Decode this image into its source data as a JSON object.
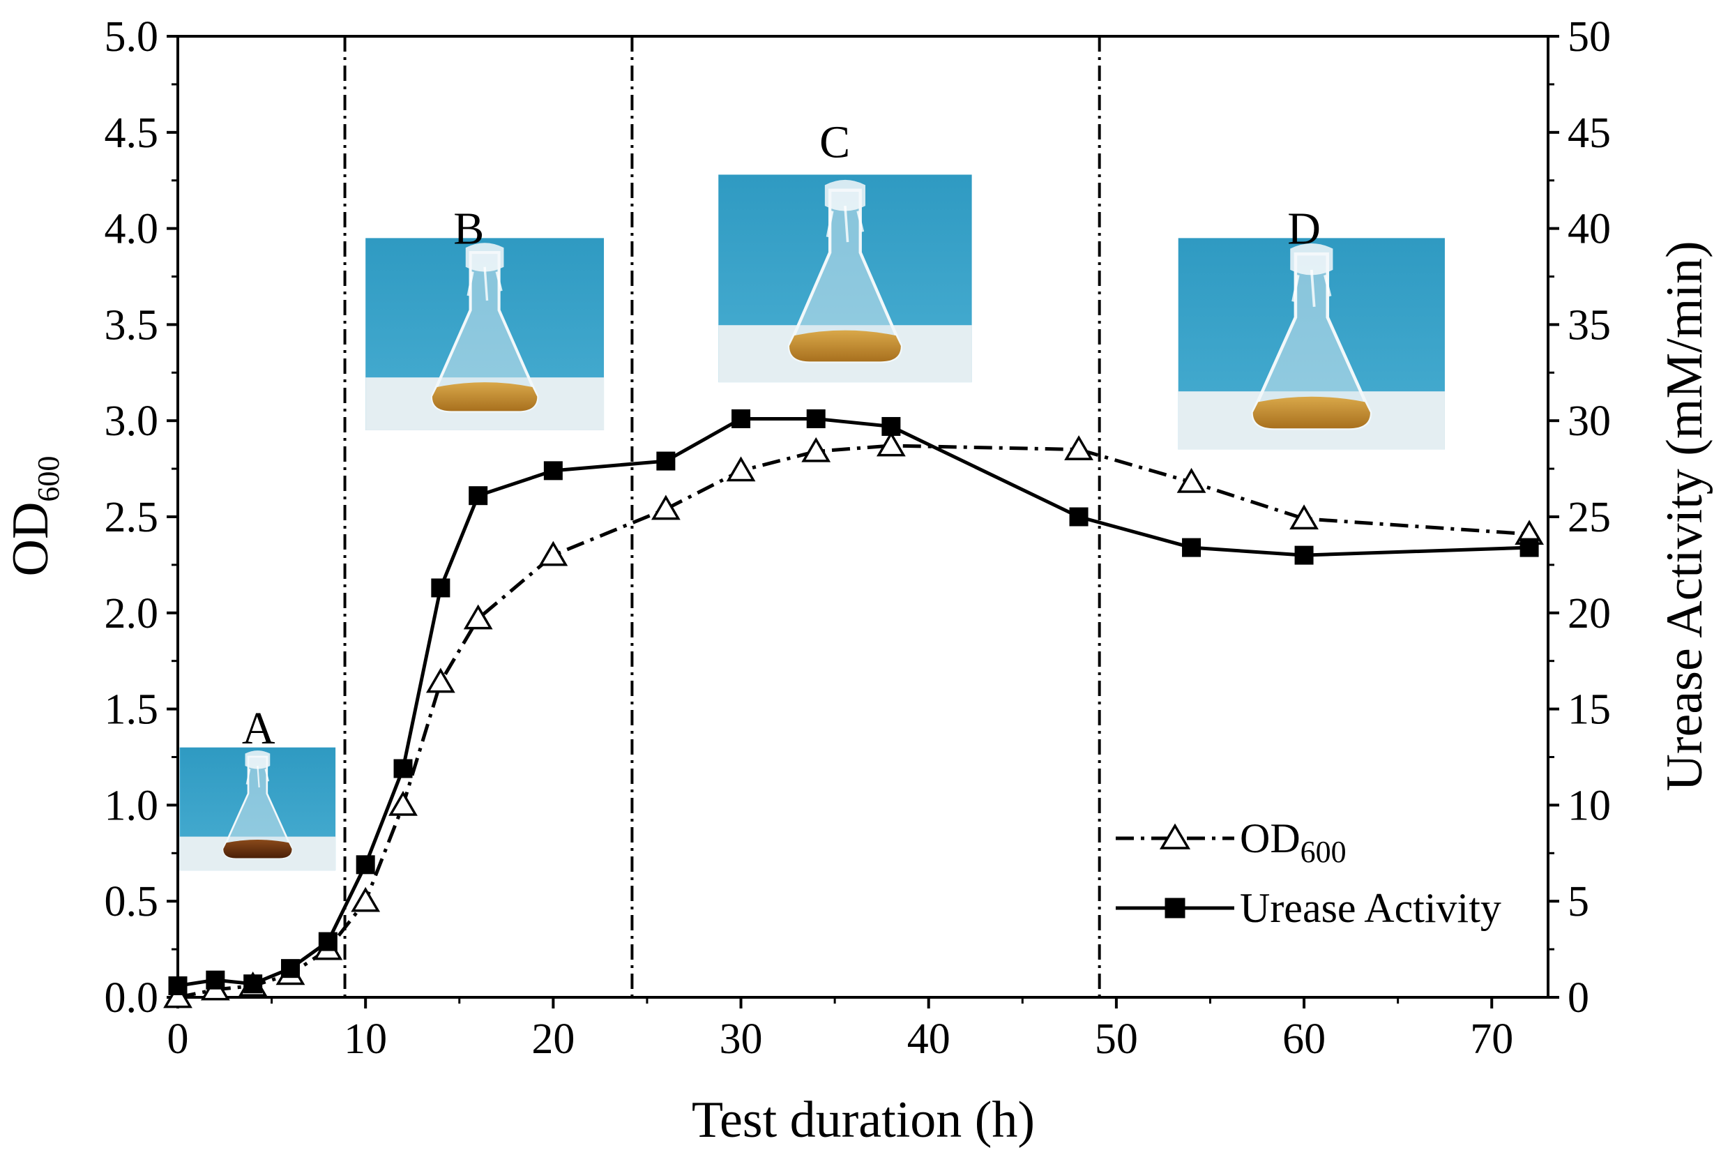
{
  "chart_data": {
    "type": "line",
    "xlabel": "Test duration (h)",
    "ylabel_left": {
      "main": "OD",
      "sub": "600"
    },
    "ylabel_right": "Urease Activity (mM/min)",
    "xlim": [
      0,
      73
    ],
    "ylim_left": [
      0,
      5
    ],
    "ylim_right": [
      0,
      50
    ],
    "xticks": [
      0,
      10,
      20,
      30,
      40,
      50,
      60,
      70
    ],
    "xtick_labels": [
      "0",
      "10",
      "20",
      "30",
      "40",
      "50",
      "60",
      "70"
    ],
    "yticks_left": [
      0,
      0.5,
      1,
      1.5,
      2,
      2.5,
      3,
      3.5,
      4,
      4.5,
      5
    ],
    "ytick_labels_left": [
      "0.0",
      "0.5",
      "1.0",
      "1.5",
      "2.0",
      "2.5",
      "3.0",
      "3.5",
      "4.0",
      "4.5",
      "5.0"
    ],
    "yticks_right": [
      0,
      5,
      10,
      15,
      20,
      25,
      30,
      35,
      40,
      45,
      50
    ],
    "ytick_labels_right": [
      "0",
      "5",
      "10",
      "15",
      "20",
      "25",
      "30",
      "35",
      "40",
      "45",
      "50"
    ],
    "series": [
      {
        "name": "OD600",
        "legend_main": "OD",
        "legend_sub": "600",
        "axis": "left",
        "marker": "open-triangle",
        "line_style": "dash-dot",
        "x": [
          0,
          2,
          4,
          6,
          8,
          10,
          12,
          14,
          16,
          20,
          26,
          30,
          34,
          38,
          48,
          54,
          60,
          72
        ],
        "y": [
          0.0,
          0.04,
          0.06,
          0.12,
          0.25,
          0.5,
          1.0,
          1.64,
          1.97,
          2.3,
          2.54,
          2.74,
          2.84,
          2.87,
          2.85,
          2.68,
          2.49,
          2.41
        ]
      },
      {
        "name": "Urease Activity",
        "legend_main": "Urease Activity",
        "axis": "right",
        "marker": "filled-square",
        "line_style": "solid",
        "x": [
          0,
          2,
          4,
          6,
          8,
          10,
          12,
          14,
          16,
          20,
          26,
          30,
          34,
          38,
          48,
          54,
          60,
          72
        ],
        "y": [
          0.6,
          0.9,
          0.7,
          1.5,
          2.9,
          6.9,
          11.9,
          21.3,
          26.1,
          27.4,
          27.9,
          30.1,
          30.1,
          29.7,
          25.0,
          23.4,
          23.0,
          23.4
        ]
      }
    ],
    "dividers_x": [
      8.9,
      24.2,
      49.1
    ],
    "regions": [
      {
        "label": "A",
        "x": 4.3
      },
      {
        "label": "B",
        "x": 15.5
      },
      {
        "label": "C",
        "x": 35.0
      },
      {
        "label": "D",
        "x": 60.0
      }
    ],
    "legend_position": "bottom-right",
    "grid": false
  }
}
